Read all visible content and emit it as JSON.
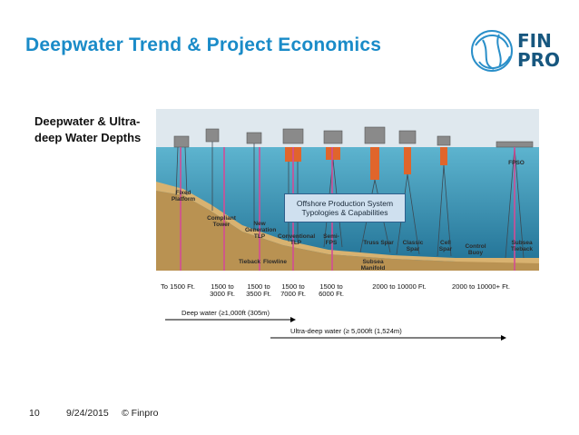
{
  "slide": {
    "title": "Deepwater Trend & Project Economics",
    "subtitle": "Deepwater & Ultra-deep Water Depths",
    "logo": {
      "line1": "FIN",
      "line2": "PRO",
      "icon": "finpro-swirl-logo"
    },
    "footer": {
      "page": "10",
      "date": "9/24/2015",
      "copyright": "© Finpro"
    }
  },
  "figure": {
    "box_text": "Offshore Production System Typologies & Capabilities",
    "structures": [
      {
        "label": "Fixed Platform"
      },
      {
        "label": "Compliant Tower"
      },
      {
        "label": "New Generation TLP"
      },
      {
        "label": "Conventional TLP"
      },
      {
        "label": "Semi-FPS"
      },
      {
        "label": "Truss Spar"
      },
      {
        "label": "Classic Spar"
      },
      {
        "label": "Cell Spar"
      },
      {
        "label": "Control Buoy"
      },
      {
        "label": "Subsea Tieback"
      },
      {
        "label": "FPSO"
      },
      {
        "label": "Tieback"
      },
      {
        "label": "Flowline"
      },
      {
        "label": "Subsea Manifold"
      }
    ],
    "depths": [
      {
        "label": "To 1500 Ft."
      },
      {
        "label": "1500 to 3000 Ft."
      },
      {
        "label": "1500 to 3500 Ft."
      },
      {
        "label": "1500 to 7000 Ft."
      },
      {
        "label": "1500 to 6000 Ft."
      },
      {
        "label": "2000 to 10000 Ft."
      },
      {
        "label": "2000 to 10000+ Ft."
      }
    ],
    "deepwater": "Deep water (≥1,000ft (305m)",
    "ultradeep": "Ultra-deep water (≥ 5,000ft (1,524m)"
  }
}
